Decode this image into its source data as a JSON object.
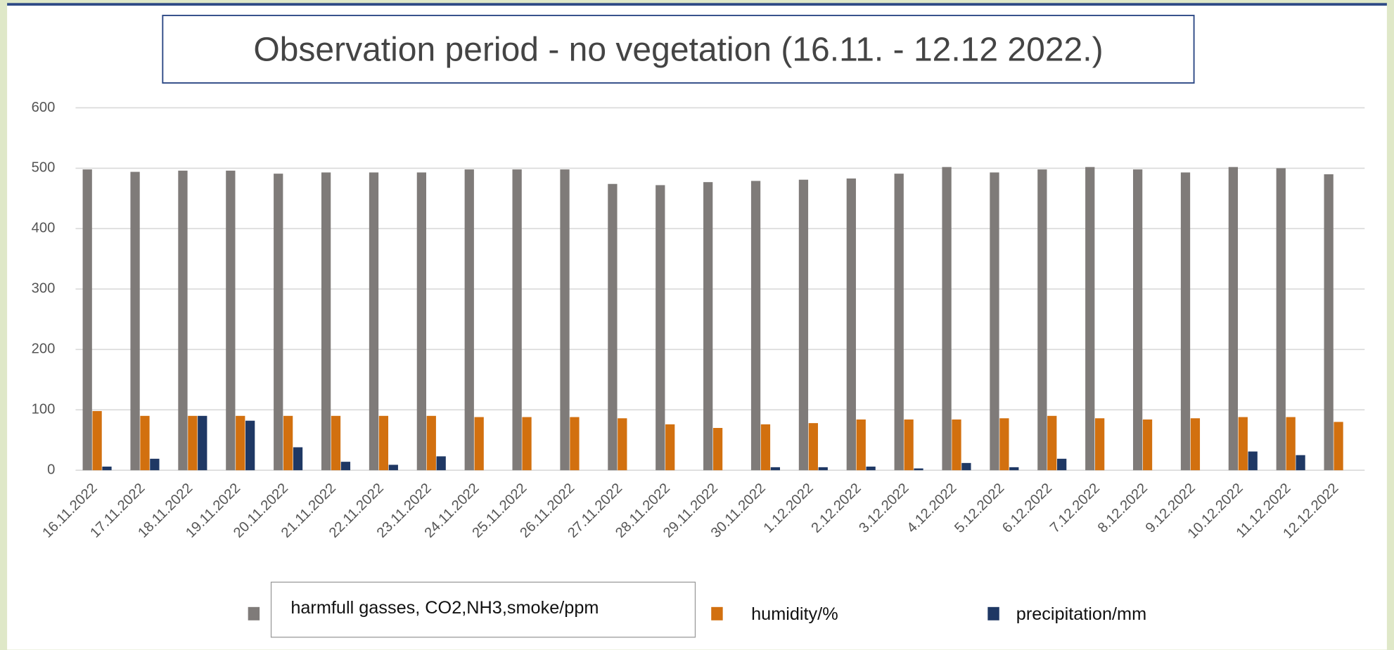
{
  "chart_data": {
    "type": "bar",
    "title": "Observation period - no vegetation (16.11. - 12.12 2022.)",
    "categories": [
      "16.11.2022",
      "17.11.2022",
      "18.11.2022",
      "19.11.2022",
      "20.11.2022",
      "21.11.2022",
      "22.11.2022",
      "23.11.2022",
      "24.11.2022",
      "25.11.2022",
      "26.11.2022",
      "27.11.2022",
      "28.11.2022",
      "29.11.2022",
      "30.11.2022",
      "1.12.2022",
      "2.12.2022",
      "3.12.2022",
      "4.12.2022",
      "5.12.2022",
      "6.12.2022",
      "7.12.2022",
      "8.12.2022",
      "9.12.2022",
      "10.12.2022",
      "11.12.2022",
      "12.12.2022"
    ],
    "series": [
      {
        "name": "harmfull gasses, CO2,NH3,smoke/ppm",
        "color": "#7f7b79",
        "values": [
          498,
          494,
          496,
          496,
          491,
          493,
          493,
          493,
          498,
          498,
          498,
          474,
          472,
          477,
          479,
          481,
          483,
          491,
          502,
          493,
          498,
          502,
          498,
          493,
          502,
          500,
          490
        ]
      },
      {
        "name": "humidity/%",
        "color": "#d2700f",
        "values": [
          98,
          90,
          90,
          90,
          90,
          90,
          90,
          90,
          88,
          88,
          88,
          86,
          76,
          70,
          76,
          78,
          84,
          84,
          84,
          86,
          90,
          86,
          84,
          86,
          88,
          88,
          80
        ]
      },
      {
        "name": "precipitation/mm",
        "color": "#1f3864",
        "values": [
          6,
          19,
          90,
          82,
          38,
          14,
          9,
          23,
          0,
          0,
          0,
          0,
          0,
          0,
          5,
          5,
          6,
          3,
          12,
          5,
          19,
          0,
          0,
          0,
          31,
          25,
          0
        ]
      }
    ],
    "ylim": [
      0,
      600
    ],
    "yticks": [
      0,
      100,
      200,
      300,
      400,
      500,
      600
    ],
    "grid": true
  }
}
